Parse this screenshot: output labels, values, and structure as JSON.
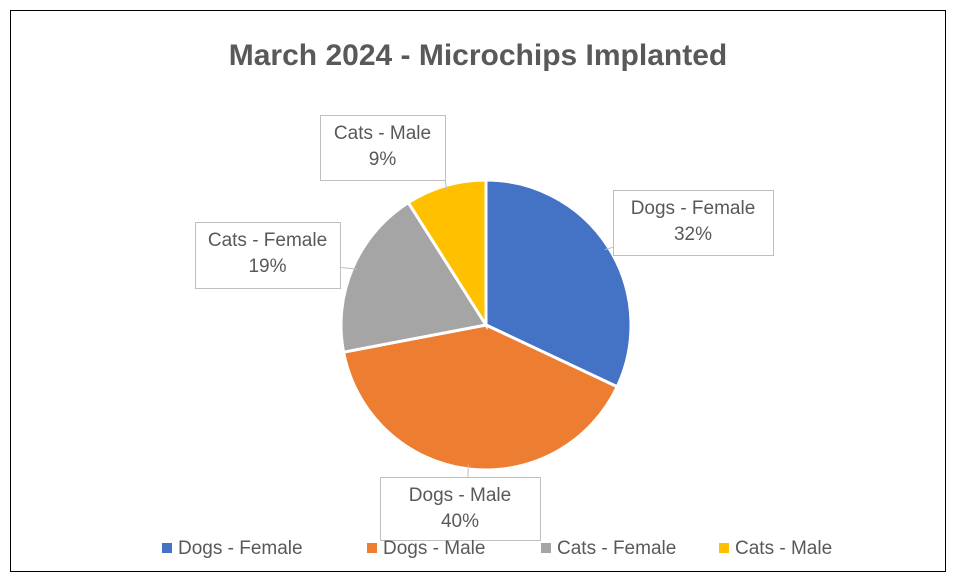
{
  "chart_data": {
    "type": "pie",
    "title": "March 2024 - Microchips Implanted",
    "categories": [
      "Dogs - Female",
      "Dogs - Male",
      "Cats - Female",
      "Cats - Male"
    ],
    "values": [
      32,
      40,
      19,
      9
    ],
    "value_labels": [
      "32%",
      "40%",
      "19%",
      "9%"
    ],
    "colors": [
      "#4472c4",
      "#ed7d31",
      "#a5a5a5",
      "#ffc000"
    ],
    "legend": "bottom"
  }
}
